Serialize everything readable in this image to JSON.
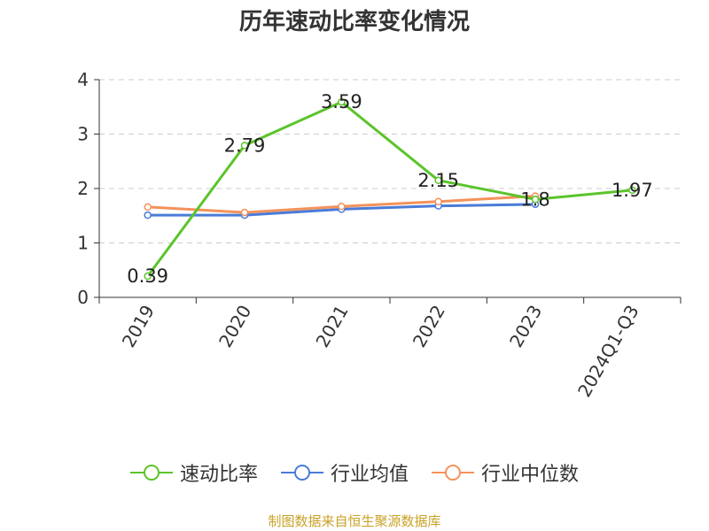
{
  "chart_data": {
    "type": "line",
    "title": "历年速动比率变化情况",
    "categories": [
      "2019",
      "2020",
      "2021",
      "2022",
      "2023",
      "2024Q1-Q3"
    ],
    "ylim": [
      0,
      4
    ],
    "yticks": [
      0,
      1,
      2,
      3,
      4
    ],
    "grid": true,
    "legend_position": "bottom",
    "series": [
      {
        "name": "速动比率",
        "color": "#5bc42b",
        "values": [
          0.39,
          2.79,
          3.59,
          2.15,
          1.8,
          1.97
        ],
        "labels": [
          "0.39",
          "2.79",
          "3.59",
          "2.15",
          "1.8",
          "1.97"
        ]
      },
      {
        "name": "行业均值",
        "color": "#4a7bd8",
        "values": [
          1.51,
          1.51,
          1.62,
          1.68,
          1.71,
          null
        ]
      },
      {
        "name": "行业中位数",
        "color": "#f4925a",
        "values": [
          1.66,
          1.56,
          1.67,
          1.76,
          1.86,
          null
        ]
      }
    ]
  },
  "source": "制图数据来自恒生聚源数据库"
}
